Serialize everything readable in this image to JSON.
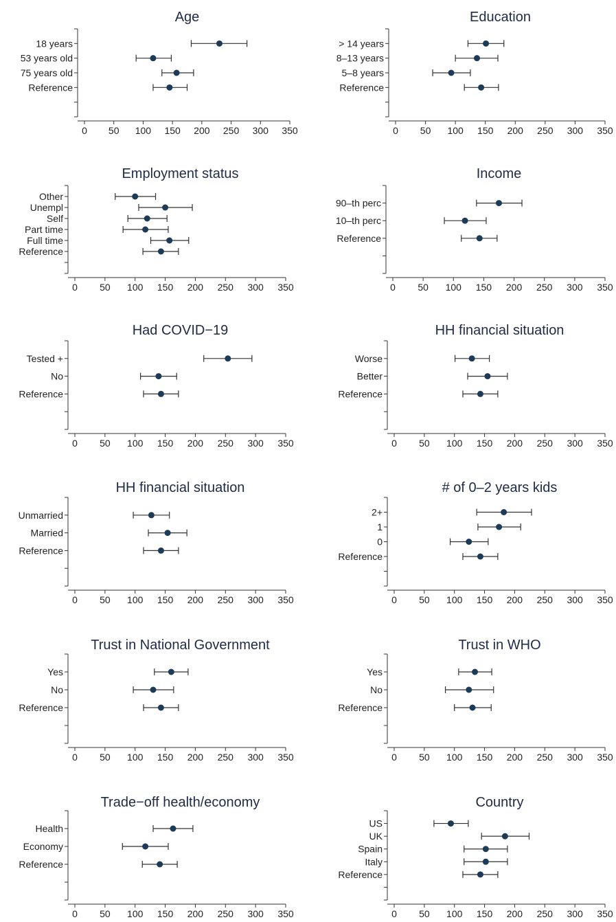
{
  "chart_data": [
    {
      "type": "scatter",
      "title": "Age",
      "xlim": [
        0,
        350
      ],
      "xticks": [
        0,
        50,
        100,
        150,
        200,
        250,
        300,
        350
      ],
      "ylim": [
        0,
        6
      ],
      "categories": [
        {
          "label": "18 years",
          "y": 5,
          "estimate": 230,
          "ci": [
            182,
            277
          ]
        },
        {
          "label": "53 years old",
          "y": 4,
          "estimate": 117,
          "ci": [
            88,
            148
          ]
        },
        {
          "label": "75 years old",
          "y": 3,
          "estimate": 157,
          "ci": [
            132,
            186
          ]
        },
        {
          "label": "Reference",
          "y": 2,
          "estimate": 145,
          "ci": [
            117,
            175
          ]
        }
      ]
    },
    {
      "type": "scatter",
      "title": "Education",
      "xlim": [
        0,
        350
      ],
      "xticks": [
        0,
        50,
        100,
        150,
        200,
        250,
        300,
        350
      ],
      "ylim": [
        0,
        6
      ],
      "categories": [
        {
          "label": "> 14 years",
          "y": 5,
          "estimate": 151,
          "ci": [
            121,
            181
          ]
        },
        {
          "label": "8–13 years",
          "y": 4,
          "estimate": 136,
          "ci": [
            100,
            171
          ]
        },
        {
          "label": "5–8 years",
          "y": 3,
          "estimate": 93,
          "ci": [
            62,
            125
          ]
        },
        {
          "label": "Reference",
          "y": 2,
          "estimate": 143,
          "ci": [
            115,
            172
          ]
        }
      ]
    },
    {
      "type": "scatter",
      "title": "Employment status",
      "xlim": [
        0,
        350
      ],
      "xticks": [
        0,
        50,
        100,
        150,
        200,
        250,
        300,
        350
      ],
      "ylim": [
        0,
        8
      ],
      "categories": [
        {
          "label": "Other",
          "y": 7,
          "estimate": 100,
          "ci": [
            67,
            134
          ]
        },
        {
          "label": "Unempl",
          "y": 6,
          "estimate": 150,
          "ci": [
            106,
            195
          ]
        },
        {
          "label": "Self",
          "y": 5,
          "estimate": 120,
          "ci": [
            88,
            153
          ]
        },
        {
          "label": "Part time",
          "y": 4,
          "estimate": 117,
          "ci": [
            80,
            155
          ]
        },
        {
          "label": "Full time",
          "y": 3,
          "estimate": 157,
          "ci": [
            126,
            189
          ]
        },
        {
          "label": "Reference",
          "y": 2,
          "estimate": 143,
          "ci": [
            113,
            172
          ]
        }
      ]
    },
    {
      "type": "scatter",
      "title": "Income",
      "xlim": [
        0,
        350
      ],
      "xticks": [
        0,
        50,
        100,
        150,
        200,
        250,
        300,
        350
      ],
      "ylim": [
        0,
        5
      ],
      "categories": [
        {
          "label": "90–th perc",
          "y": 4,
          "estimate": 175,
          "ci": [
            138,
            213
          ]
        },
        {
          "label": "10–th perc",
          "y": 3,
          "estimate": 119,
          "ci": [
            85,
            154
          ]
        },
        {
          "label": "Reference",
          "y": 2,
          "estimate": 143,
          "ci": [
            113,
            172
          ]
        }
      ]
    },
    {
      "type": "scatter",
      "title": "Had COVID−19",
      "xlim": [
        0,
        350
      ],
      "xticks": [
        0,
        50,
        100,
        150,
        200,
        250,
        300,
        350
      ],
      "ylim": [
        0,
        5
      ],
      "categories": [
        {
          "label": "Tested +",
          "y": 4,
          "estimate": 254,
          "ci": [
            214,
            294
          ]
        },
        {
          "label": "No",
          "y": 3,
          "estimate": 139,
          "ci": [
            109,
            169
          ]
        },
        {
          "label": "Reference",
          "y": 2,
          "estimate": 143,
          "ci": [
            114,
            172
          ]
        }
      ]
    },
    {
      "type": "scatter",
      "title": "HH financial situation",
      "xlim": [
        0,
        350
      ],
      "xticks": [
        0,
        50,
        100,
        150,
        200,
        250,
        300,
        350
      ],
      "ylim": [
        0,
        5
      ],
      "categories": [
        {
          "label": "Worse",
          "y": 4,
          "estimate": 129,
          "ci": [
            101,
            158
          ]
        },
        {
          "label": "Better",
          "y": 3,
          "estimate": 155,
          "ci": [
            122,
            188
          ]
        },
        {
          "label": "Reference",
          "y": 2,
          "estimate": 143,
          "ci": [
            114,
            172
          ]
        }
      ]
    },
    {
      "type": "scatter",
      "title": "HH financial situation",
      "xlim": [
        0,
        350
      ],
      "xticks": [
        0,
        50,
        100,
        150,
        200,
        250,
        300,
        350
      ],
      "ylim": [
        0,
        5
      ],
      "categories": [
        {
          "label": "Unmarried",
          "y": 4,
          "estimate": 127,
          "ci": [
            97,
            157
          ]
        },
        {
          "label": "Married",
          "y": 3,
          "estimate": 154,
          "ci": [
            122,
            186
          ]
        },
        {
          "label": "Reference",
          "y": 2,
          "estimate": 143,
          "ci": [
            114,
            172
          ]
        }
      ]
    },
    {
      "type": "scatter",
      "title": "# of 0–2 years kids",
      "xlim": [
        0,
        350
      ],
      "xticks": [
        0,
        50,
        100,
        150,
        200,
        250,
        300,
        350
      ],
      "ylim": [
        0,
        6
      ],
      "categories": [
        {
          "label": "2+",
          "y": 5,
          "estimate": 182,
          "ci": [
            137,
            228
          ]
        },
        {
          "label": "1",
          "y": 4,
          "estimate": 174,
          "ci": [
            139,
            210
          ]
        },
        {
          "label": "0",
          "y": 3,
          "estimate": 124,
          "ci": [
            93,
            156
          ]
        },
        {
          "label": "Reference",
          "y": 2,
          "estimate": 143,
          "ci": [
            114,
            172
          ]
        }
      ]
    },
    {
      "type": "scatter",
      "title": "Trust in National Government",
      "xlim": [
        0,
        350
      ],
      "xticks": [
        0,
        50,
        100,
        150,
        200,
        250,
        300,
        350
      ],
      "ylim": [
        0,
        5
      ],
      "categories": [
        {
          "label": "Yes",
          "y": 4,
          "estimate": 160,
          "ci": [
            132,
            188
          ]
        },
        {
          "label": "No",
          "y": 3,
          "estimate": 130,
          "ci": [
            97,
            164
          ]
        },
        {
          "label": "Reference",
          "y": 2,
          "estimate": 143,
          "ci": [
            114,
            172
          ]
        }
      ]
    },
    {
      "type": "scatter",
      "title": "Trust in WHO",
      "xlim": [
        0,
        350
      ],
      "xticks": [
        0,
        50,
        100,
        150,
        200,
        250,
        300,
        350
      ],
      "ylim": [
        0,
        5
      ],
      "categories": [
        {
          "label": "Yes",
          "y": 4,
          "estimate": 134,
          "ci": [
            107,
            162
          ]
        },
        {
          "label": "No",
          "y": 3,
          "estimate": 124,
          "ci": [
            85,
            165
          ]
        },
        {
          "label": "Reference",
          "y": 2,
          "estimate": 130,
          "ci": [
            100,
            161
          ]
        }
      ]
    },
    {
      "type": "scatter",
      "title": "Trade−off health/economy",
      "xlim": [
        0,
        350
      ],
      "xticks": [
        0,
        50,
        100,
        150,
        200,
        250,
        300,
        350
      ],
      "ylim": [
        0,
        5
      ],
      "categories": [
        {
          "label": "Health",
          "y": 4,
          "estimate": 163,
          "ci": [
            130,
            196
          ]
        },
        {
          "label": "Economy",
          "y": 3,
          "estimate": 117,
          "ci": [
            79,
            155
          ]
        },
        {
          "label": "Reference",
          "y": 2,
          "estimate": 141,
          "ci": [
            112,
            170
          ]
        }
      ]
    },
    {
      "type": "scatter",
      "title": "Country",
      "xlim": [
        0,
        350
      ],
      "xticks": [
        0,
        50,
        100,
        150,
        200,
        250,
        300,
        350
      ],
      "ylim": [
        0,
        7
      ],
      "categories": [
        {
          "label": "US",
          "y": 6,
          "estimate": 94,
          "ci": [
            66,
            123
          ]
        },
        {
          "label": "UK",
          "y": 5,
          "estimate": 184,
          "ci": [
            145,
            224
          ]
        },
        {
          "label": "Spain",
          "y": 4,
          "estimate": 152,
          "ci": [
            116,
            188
          ]
        },
        {
          "label": "Italy",
          "y": 3,
          "estimate": 152,
          "ci": [
            116,
            188
          ]
        },
        {
          "label": "Reference",
          "y": 2,
          "estimate": 143,
          "ci": [
            114,
            172
          ]
        }
      ]
    }
  ]
}
